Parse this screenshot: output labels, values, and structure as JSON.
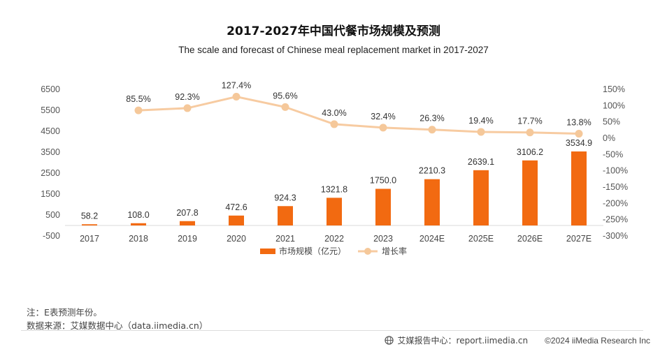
{
  "chart_data": {
    "type": "bar+line",
    "title": "2017-2027年中国代餐市场规模及预测",
    "subtitle": "The scale and forecast of Chinese meal replacement market in 2017-2027",
    "categories": [
      "2017",
      "2018",
      "2019",
      "2020",
      "2021",
      "2022",
      "2023",
      "2024E",
      "2025E",
      "2026E",
      "2027E"
    ],
    "series": [
      {
        "name": "市场规模（亿元）",
        "type": "bar",
        "axis": "left",
        "values": [
          58.2,
          108.0,
          207.8,
          472.6,
          924.3,
          1321.8,
          1750.0,
          2210.3,
          2639.1,
          3106.2,
          3534.9
        ],
        "labels": [
          "58.2",
          "108.0",
          "207.8",
          "472.6",
          "924.3",
          "1321.8",
          "1750.0",
          "2210.3",
          "2639.1",
          "3106.2",
          "3534.9"
        ]
      },
      {
        "name": "增长率",
        "type": "line",
        "axis": "right",
        "values": [
          null,
          85.5,
          92.3,
          127.4,
          95.6,
          43.0,
          32.4,
          26.3,
          19.4,
          17.7,
          13.8
        ],
        "labels": [
          "",
          "85.5%",
          "92.3%",
          "127.4%",
          "95.6%",
          "43.0%",
          "32.4%",
          "26.3%",
          "19.4%",
          "17.7%",
          "13.8%"
        ]
      }
    ],
    "y_left": {
      "min": -500,
      "max": 6500,
      "ticks": [
        -500,
        500,
        1500,
        2500,
        3500,
        4500,
        5500,
        6500
      ],
      "tick_labels": [
        "-500",
        "500",
        "1500",
        "2500",
        "3500",
        "4500",
        "5500",
        "6500"
      ]
    },
    "y_right": {
      "min": -300,
      "max": 150,
      "ticks": [
        -300,
        -250,
        -200,
        -150,
        -100,
        -50,
        0,
        50,
        100,
        150
      ],
      "tick_labels": [
        "-300%",
        "-250%",
        "-200%",
        "-150%",
        "-100%",
        "-50%",
        "0%",
        "50%",
        "100%",
        "150%"
      ]
    },
    "legend": {
      "position": "bottom",
      "items": [
        "市场规模（亿元）",
        "增长率"
      ]
    },
    "colors": {
      "bar": "#f26a11",
      "line": "#f7cba1",
      "marker": "#f5c89a"
    }
  },
  "notes": {
    "note": "注：E表预测年份。",
    "source": "数据来源：艾媒数据中心（data.iimedia.cn）"
  },
  "footer": {
    "center": "艾媒报告中心：report.iimedia.cn",
    "copyright": "©2024  iiMedia Research  Inc"
  }
}
